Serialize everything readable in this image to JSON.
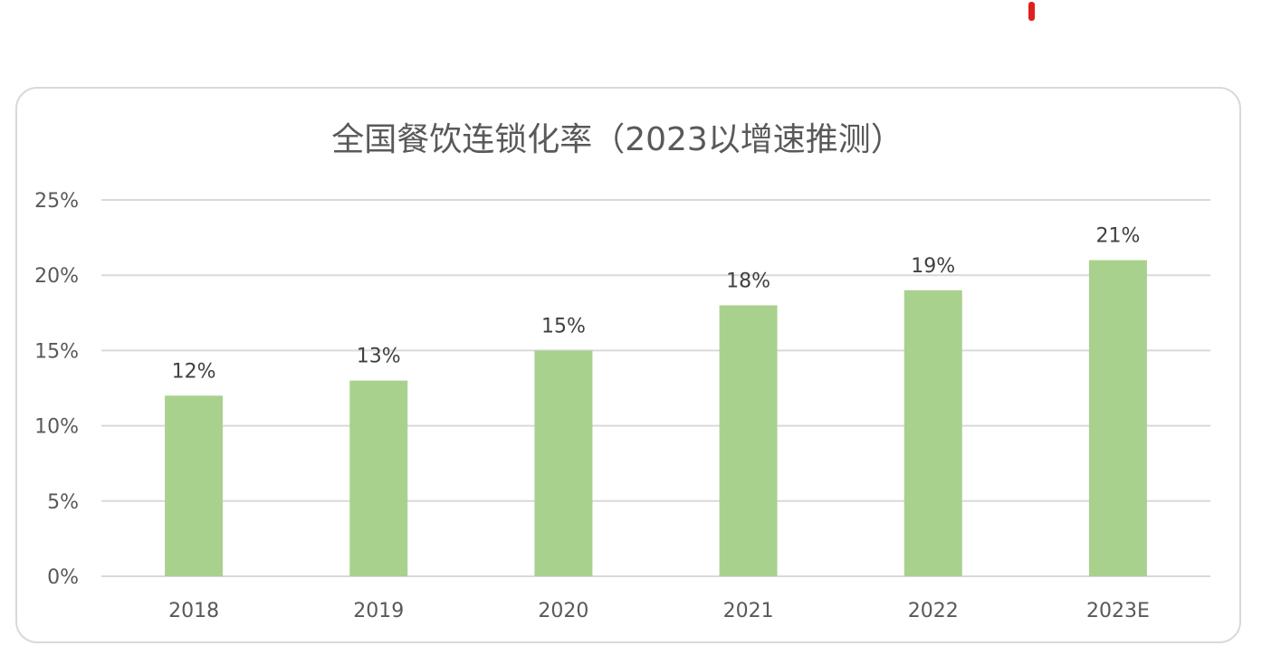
{
  "chart_data": {
    "type": "bar",
    "title": "全国餐饮连锁化率（2023以增速推测）",
    "xlabel": "",
    "ylabel": "",
    "categories": [
      "2018",
      "2019",
      "2020",
      "2021",
      "2022",
      "2023E"
    ],
    "values": [
      12,
      13,
      15,
      18,
      19,
      21
    ],
    "data_labels": [
      "12%",
      "13%",
      "15%",
      "18%",
      "19%",
      "21%"
    ],
    "ylim": [
      0,
      25
    ],
    "y_ticks": [
      0,
      5,
      10,
      15,
      20,
      25
    ],
    "y_tick_labels": [
      "0%",
      "5%",
      "10%",
      "15%",
      "20%",
      "25%"
    ],
    "grid": true,
    "legend": "none",
    "bar_color": "#a9d18e",
    "grid_color": "#d9d9d9"
  },
  "decoration": {
    "mark_color": "#e02020"
  }
}
